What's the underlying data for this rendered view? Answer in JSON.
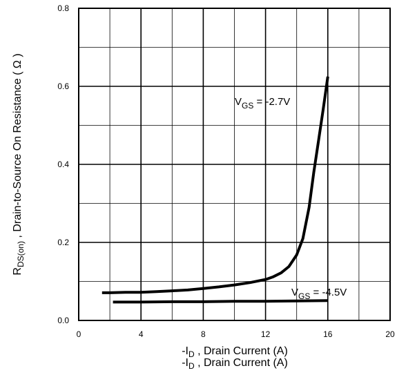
{
  "chart_data": {
    "type": "line",
    "xlim": [
      0,
      20
    ],
    "ylim": [
      0,
      0.8
    ],
    "x_ticks": [
      "0",
      "4",
      "8",
      "12",
      "16",
      "20"
    ],
    "y_ticks": [
      "0.0",
      "0.2",
      "0.4",
      "0.6",
      "0.8"
    ],
    "grid": true,
    "x_minor_step": 2,
    "y_minor_step": 0.1,
    "xlabel": {
      "prefix": "-I",
      "sub": "D",
      "rest": " , Drain Current  (A)"
    },
    "ylabel": {
      "prefix": "R",
      "sub": "DS(on)",
      "rest": " ,   Drain-to-Source On Resistance ( Ω )"
    },
    "series": [
      {
        "name": "V GS = -2.7V",
        "label": {
          "v": "V",
          "sub": "GS",
          "rest": " = -2.7V"
        },
        "x": [
          1.5,
          2,
          3,
          4,
          5,
          6,
          7,
          8,
          9,
          10,
          11,
          12,
          12.5,
          13,
          13.5,
          14,
          14.4,
          14.8,
          15.1,
          15.4,
          15.7,
          16.0
        ],
        "y": [
          0.071,
          0.071,
          0.072,
          0.072,
          0.074,
          0.076,
          0.078,
          0.082,
          0.086,
          0.091,
          0.097,
          0.105,
          0.112,
          0.122,
          0.138,
          0.168,
          0.21,
          0.29,
          0.38,
          0.46,
          0.54,
          0.625
        ]
      },
      {
        "name": "V GS = -4.5V",
        "label": {
          "v": "V",
          "sub": "GS",
          "rest": " = -4.5V"
        },
        "x": [
          2.2,
          4,
          6,
          8,
          10,
          12,
          14,
          16
        ],
        "y": [
          0.047,
          0.047,
          0.048,
          0.048,
          0.049,
          0.049,
          0.05,
          0.051
        ]
      }
    ]
  }
}
